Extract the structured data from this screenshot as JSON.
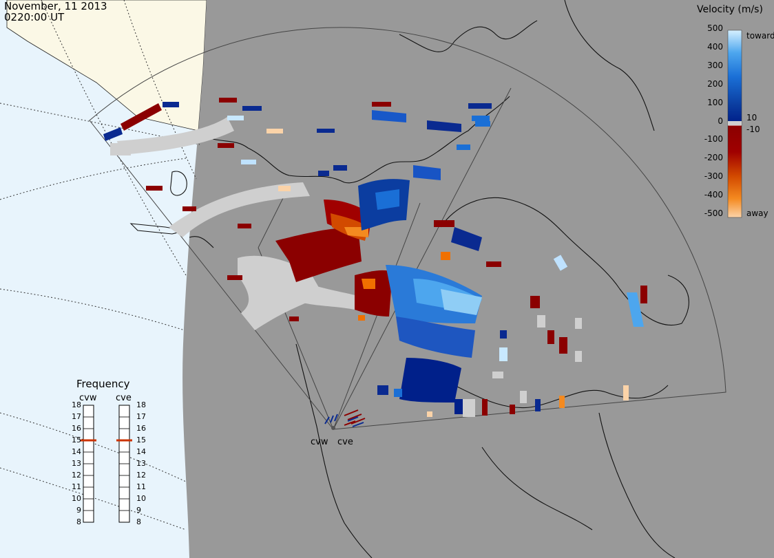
{
  "header": {
    "date": "November, 11 2013",
    "time": "0220:00 UT"
  },
  "colorbar": {
    "title": "Velocity (m/s)",
    "ticks": [
      "500",
      "400",
      "300",
      "200",
      "100",
      "0",
      "-100",
      "-200",
      "-300",
      "-400",
      "-500"
    ],
    "inner_labels": [
      "10",
      "-10"
    ],
    "toward_label": "toward",
    "away_label": "away"
  },
  "frequency": {
    "title": "Frequency",
    "radars": [
      {
        "name": "cvw",
        "value_mhz": 15
      },
      {
        "name": "cve",
        "value_mhz": 15
      }
    ],
    "ticks": [
      "18",
      "17",
      "16",
      "15",
      "14",
      "13",
      "12",
      "11",
      "10",
      "9",
      "8"
    ]
  },
  "sites": [
    {
      "label": "cvw"
    },
    {
      "label": "cve"
    }
  ],
  "colors": {
    "land_gray": "#999999",
    "ocean": "#e8f4fc",
    "land_cream": "#fbf8e6",
    "ground_scatter": "#cfcfcf",
    "frequency_marker": "#cc3300"
  }
}
